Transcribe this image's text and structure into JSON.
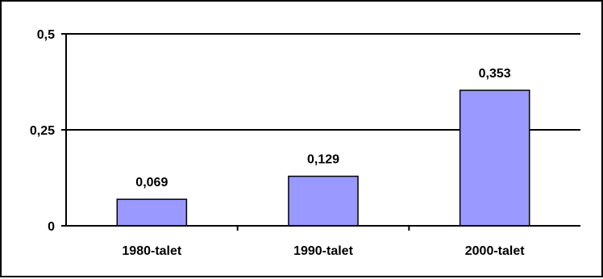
{
  "chart_data": {
    "type": "bar",
    "categories": [
      "1980-talet",
      "1990-talet",
      "2000-talet"
    ],
    "values": [
      0.069,
      0.129,
      0.353
    ],
    "data_labels": [
      "0,069",
      "0,129",
      "0,353"
    ],
    "y_ticks": [
      0,
      0.25,
      0.5
    ],
    "y_tick_labels": [
      "0",
      "0,25",
      "0,5"
    ],
    "ylim": [
      0,
      0.5
    ],
    "title": "",
    "xlabel": "",
    "ylabel": "",
    "grid": true,
    "legend": "none",
    "bar_color": "#9999ff",
    "bar_border_color": "#000000"
  }
}
